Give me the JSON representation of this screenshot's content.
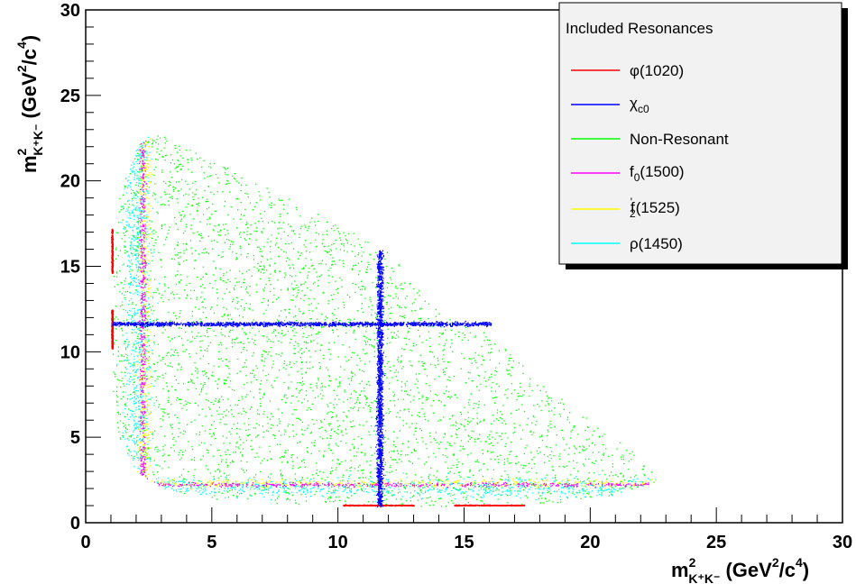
{
  "chart_data": {
    "type": "scatter",
    "title": "",
    "xlabel": {
      "base": "m",
      "sup": "2",
      "sub": "K⁺K⁻",
      "units_prefix": "(GeV",
      "units_sup1": "2",
      "units_mid": "/c",
      "units_sup2": "4",
      "units_suffix": ")"
    },
    "ylabel": {
      "base": "m",
      "sup": "2",
      "sub": "K⁺K⁻",
      "units_prefix": "(GeV",
      "units_sup1": "2",
      "units_mid": "/c",
      "units_sup2": "4",
      "units_suffix": ")"
    },
    "xlim": [
      0,
      30
    ],
    "ylim": [
      0,
      30
    ],
    "x_ticks": [
      0,
      5,
      10,
      15,
      20,
      25,
      30
    ],
    "y_ticks": [
      0,
      5,
      10,
      15,
      20,
      25,
      30
    ],
    "x_tick_labels": [
      "0",
      "5",
      "10",
      "15",
      "20",
      "25",
      "30"
    ],
    "y_tick_labels": [
      "0",
      "5",
      "10",
      "15",
      "20",
      "25",
      "30"
    ],
    "grid": false,
    "legend_position": "top-right",
    "legend_title": "Included Resonances",
    "series": [
      {
        "name": "φ(1020)",
        "label_main": "φ(1020)",
        "label_sub": "",
        "label_rest": "",
        "color": "#ff0000",
        "band_mass2": 1.04
      },
      {
        "name": "χc0",
        "label_main": "χ",
        "label_sub": "c0",
        "label_rest": "",
        "color": "#0000ff",
        "band_mass2": 11.65
      },
      {
        "name": "Non-Resonant",
        "label_main": "Non-Resonant",
        "label_sub": "",
        "label_rest": "",
        "color": "#00ff00"
      },
      {
        "name": "f0(1500)",
        "label_main": "f",
        "label_sub": "0",
        "label_rest": "(1500)",
        "color": "#ff00ff",
        "band_mass2": 2.25
      },
      {
        "name": "f'2(1525)",
        "label_main": "f",
        "label_sub": "2",
        "label_sup": "'",
        "label_rest": "(1525)",
        "color": "#ffff00",
        "band_mass2": 2.33
      },
      {
        "name": "ρ(1450)",
        "label_main": "ρ(1450)",
        "label_sub": "",
        "label_rest": "",
        "color": "#00ffff",
        "band_mass2": 2.1
      }
    ],
    "dalitz_boundary": [
      [
        1.0,
        11.5
      ],
      [
        1.05,
        15.5
      ],
      [
        1.3,
        19.0
      ],
      [
        2.0,
        22.0
      ],
      [
        2.5,
        22.7
      ],
      [
        3.0,
        22.7
      ],
      [
        6.0,
        20.5
      ],
      [
        10.0,
        17.5
      ],
      [
        12.0,
        15.8
      ],
      [
        14.0,
        12.3
      ],
      [
        16.0,
        11.0
      ],
      [
        18.0,
        8.3
      ],
      [
        20.0,
        6.0
      ],
      [
        22.0,
        3.9
      ],
      [
        22.8,
        2.5
      ],
      [
        21.0,
        1.6
      ],
      [
        18.0,
        1.1
      ],
      [
        15.0,
        0.95
      ],
      [
        11.5,
        0.92
      ],
      [
        8.0,
        1.1
      ],
      [
        5.0,
        1.4
      ],
      [
        3.0,
        2.0
      ],
      [
        2.0,
        3.0
      ],
      [
        1.3,
        5.0
      ],
      [
        1.05,
        8.0
      ]
    ]
  }
}
